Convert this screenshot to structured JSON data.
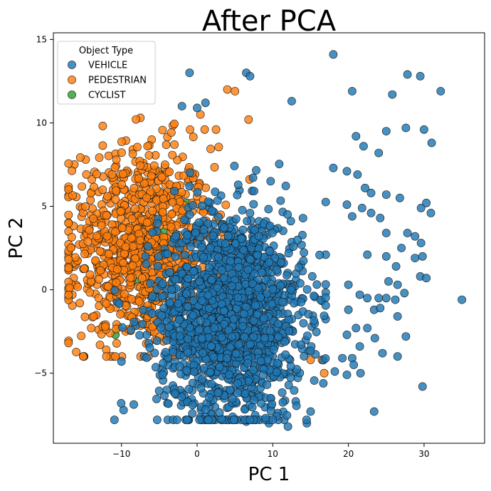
{
  "chart_data": {
    "type": "scatter",
    "title": "After PCA",
    "xlabel": "PC 1",
    "ylabel": "PC 2",
    "xlim": [
      -19,
      38
    ],
    "ylim": [
      -9.2,
      15.4
    ],
    "xticks": [
      -10,
      0,
      10,
      20,
      30
    ],
    "yticks": [
      -5,
      0,
      5,
      10,
      15
    ],
    "grid": false,
    "legend": {
      "title": "Object Type",
      "position": "top-left",
      "entries": [
        "VEHICLE",
        "PEDESTRIAN",
        "CYCLIST"
      ]
    },
    "series": [
      {
        "name": "VEHICLE",
        "color": "#1f77b4",
        "points": [
          [
            18,
            14.1
          ],
          [
            -1,
            13
          ],
          [
            6.5,
            13
          ],
          [
            7,
            12.8
          ],
          [
            20.5,
            11.9
          ],
          [
            25.8,
            11.7
          ],
          [
            32.2,
            11.9
          ],
          [
            1.1,
            11.2
          ],
          [
            12.5,
            11.3
          ],
          [
            -2,
            11
          ],
          [
            0,
            10.9
          ],
          [
            27.8,
            12.9
          ],
          [
            29.5,
            12.8
          ],
          [
            21,
            9.2
          ],
          [
            22,
            8.6
          ],
          [
            24,
            8.2
          ],
          [
            25,
            9.5
          ],
          [
            27.6,
            9.7
          ],
          [
            30,
            9.6
          ],
          [
            31,
            8.8
          ],
          [
            18,
            7.3
          ],
          [
            19.8,
            7.1
          ],
          [
            21.2,
            6.9
          ],
          [
            22.2,
            6.1
          ],
          [
            23,
            5.8
          ],
          [
            25,
            5.7
          ],
          [
            26.8,
            5.5
          ],
          [
            19.8,
            5.1
          ],
          [
            21.8,
            4.9
          ],
          [
            29.6,
            4.9
          ],
          [
            30.3,
            5.2
          ],
          [
            30.9,
            4.6
          ],
          [
            20.5,
            4.4
          ],
          [
            23,
            4.6
          ],
          [
            24.2,
            4.3
          ],
          [
            25,
            3.4
          ],
          [
            27.8,
            3.4
          ],
          [
            28.8,
            3.2
          ],
          [
            29.6,
            2.8
          ],
          [
            22.5,
            2.1
          ],
          [
            25,
            2
          ],
          [
            27,
            2.5
          ],
          [
            28.8,
            1.9
          ],
          [
            29.8,
            2
          ],
          [
            26.3,
            1.4
          ],
          [
            29.5,
            0.8
          ],
          [
            30.3,
            0.7
          ],
          [
            20,
            0.3
          ],
          [
            25.3,
            0.5
          ],
          [
            26.5,
            0.3
          ],
          [
            21.5,
            -0.3
          ],
          [
            22.5,
            -0.5
          ],
          [
            24,
            -0.5
          ],
          [
            25,
            -0.5
          ],
          [
            26.2,
            -0.6
          ],
          [
            27.4,
            -0.2
          ],
          [
            35,
            -0.6
          ],
          [
            20,
            -1.2
          ],
          [
            23.4,
            -1.2
          ],
          [
            24.2,
            -1.1
          ],
          [
            26.5,
            -1.6
          ],
          [
            21,
            -2.3
          ],
          [
            22.5,
            -2.3
          ],
          [
            23.5,
            -2.9
          ],
          [
            24.5,
            -3.8
          ],
          [
            27.6,
            -2.8
          ],
          [
            26.5,
            -4
          ],
          [
            19.8,
            -2.7
          ],
          [
            21.5,
            -3.4
          ],
          [
            19.2,
            -4.1
          ],
          [
            20.5,
            -4.1
          ],
          [
            18.2,
            -4.9
          ],
          [
            20.7,
            -4.5
          ],
          [
            19.8,
            -5.1
          ],
          [
            21.6,
            -5
          ],
          [
            15,
            -7.3
          ],
          [
            23.4,
            -7.3
          ],
          [
            29.8,
            -5.8
          ],
          [
            14.5,
            -8
          ],
          [
            9.5,
            -8
          ],
          [
            12,
            -8.2
          ],
          [
            6.5,
            -7.9
          ],
          [
            -1.5,
            -7.8
          ],
          [
            2,
            -7.5
          ],
          [
            -4,
            -6
          ],
          [
            -2,
            -6.2
          ],
          [
            -4,
            -4.2
          ],
          [
            -10,
            -4.3
          ],
          [
            -7,
            -4
          ]
        ],
        "cluster": {
          "center": [
            4.5,
            -1.5
          ],
          "spread": [
            4.8,
            3.1
          ],
          "count": 1700
        }
      },
      {
        "name": "PEDESTRIAN",
        "color": "#ff7f0e",
        "points": [
          [
            4,
            12
          ],
          [
            5,
            11.9
          ],
          [
            6.8,
            10.2
          ],
          [
            -8.5,
            8.4
          ],
          [
            -10,
            6.7
          ],
          [
            -14,
            4.5
          ],
          [
            -16.5,
            -0.3
          ],
          [
            -16,
            0.3
          ],
          [
            -15.5,
            -0.8
          ],
          [
            -14,
            -2.3
          ],
          [
            -13,
            -2.4
          ],
          [
            -12,
            -3.6
          ],
          [
            -11.5,
            -2.6
          ],
          [
            15,
            -4.2
          ],
          [
            16.5,
            -4.2
          ],
          [
            16.8,
            -5
          ],
          [
            -7.5,
            10.3
          ],
          [
            -6,
            9
          ],
          [
            -3,
            8.7
          ],
          [
            1,
            9.6
          ],
          [
            2.5,
            9.6
          ]
        ],
        "cluster": {
          "center": [
            -7.5,
            2.6
          ],
          "spread": [
            4.8,
            3.0
          ],
          "count": 900
        }
      },
      {
        "name": "CYCLIST",
        "color": "#2ca02c",
        "points": [
          [
            -1.3,
            5.2
          ],
          [
            -4.3,
            3.5
          ],
          [
            -5.2,
            3.2
          ],
          [
            -10.8,
            -2.7
          ],
          [
            -7,
            -1.5
          ],
          [
            -3.2,
            2.2
          ],
          [
            -8,
            0.5
          ]
        ]
      }
    ]
  }
}
